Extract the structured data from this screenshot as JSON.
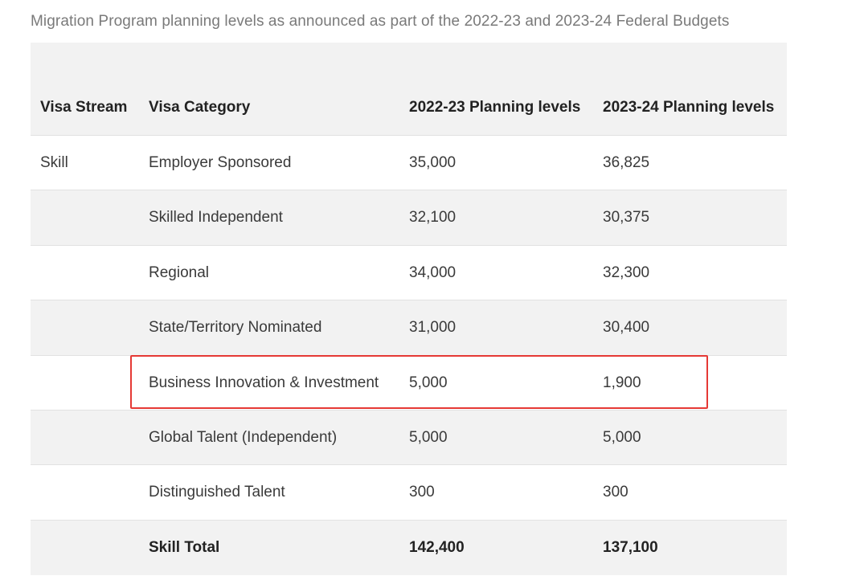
{
  "caption": "Migration Program planning levels as announced as part of the 2022-23 and 2023-24 Federal Budgets",
  "table": {
    "headers": [
      "Visa Stream",
      "Visa Category",
      "2022-23 Planning levels",
      "2023-24 Planning levels"
    ],
    "rows": [
      [
        "Skill",
        "Employer Sponsored",
        "35,000",
        "36,825"
      ],
      [
        "",
        "Skilled Independent",
        "32,100",
        "30,375"
      ],
      [
        "",
        "Regional",
        "34,000",
        "32,300"
      ],
      [
        "",
        "State/Territory Nominated",
        "31,000",
        "30,400"
      ],
      [
        "",
        "Business Innovation & Investment",
        "5,000",
        "1,900"
      ],
      [
        "",
        "Global Talent (Independent)",
        "5,000",
        "5,000"
      ],
      [
        "",
        "Distinguished Talent",
        "300",
        "300"
      ],
      [
        "",
        "Skill Total",
        "142,400",
        "137,100"
      ]
    ]
  },
  "highlight_color": "#e53935"
}
